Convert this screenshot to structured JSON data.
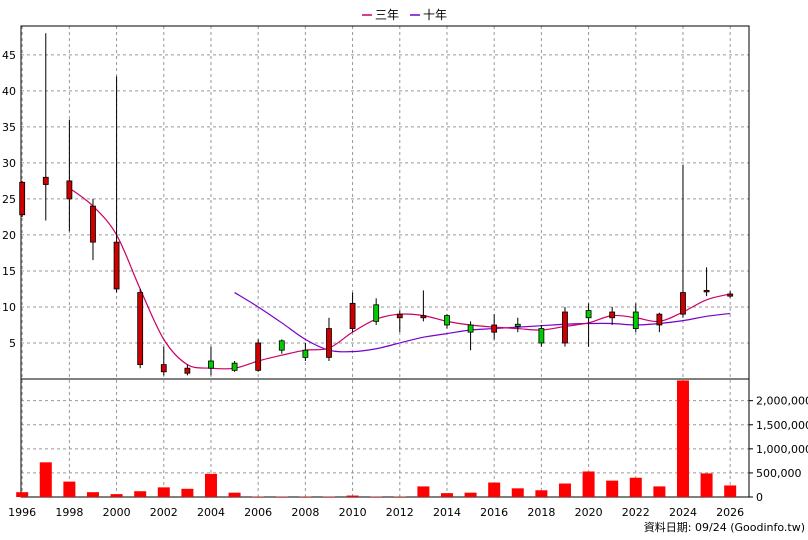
{
  "legend": {
    "ma3_label": "三年",
    "ma10_label": "十年"
  },
  "source_text": "資料日期: 09/24 (Goodinfo.tw)",
  "colors": {
    "up": "#00cc00",
    "down": "#cc0000",
    "ma3": "#cc0066",
    "ma10": "#7700cc",
    "volume": "#ff0000",
    "grid": "#999999"
  },
  "chart_data": {
    "type": "candlestick+volume",
    "x_ticks": [
      "1996",
      "1998",
      "2000",
      "2002",
      "2004",
      "2006",
      "2008",
      "2010",
      "2012",
      "2014",
      "2016",
      "2018",
      "2020",
      "2022",
      "2024",
      "2026"
    ],
    "price_axis": {
      "ticks": [
        5,
        10,
        15,
        20,
        25,
        30,
        35,
        40,
        45
      ],
      "range": [
        0,
        49
      ]
    },
    "volume_axis": {
      "ticks": [
        0,
        500000,
        1000000,
        1500000,
        2000000
      ],
      "tick_labels": [
        "0",
        "500,000",
        "1,000,000",
        "1,500,000",
        "2,000,000"
      ],
      "range": [
        0,
        2450000
      ]
    },
    "candles": [
      {
        "year": 1996,
        "open": 27.3,
        "high": 27.5,
        "low": 22.5,
        "close": 22.8
      },
      {
        "year": 1997,
        "open": 28.0,
        "high": 48.0,
        "low": 22.0,
        "close": 27.0
      },
      {
        "year": 1998,
        "open": 27.5,
        "high": 36.0,
        "low": 20.5,
        "close": 25.0
      },
      {
        "year": 1999,
        "open": 24.0,
        "high": 25.0,
        "low": 16.5,
        "close": 19.0
      },
      {
        "year": 2000,
        "open": 19.0,
        "high": 42.0,
        "low": 12.0,
        "close": 12.5
      },
      {
        "year": 2001,
        "open": 12.0,
        "high": 12.5,
        "low": 1.5,
        "close": 2.0
      },
      {
        "year": 2002,
        "open": 2.0,
        "high": 4.5,
        "low": 0.5,
        "close": 1.0
      },
      {
        "year": 2003,
        "open": 1.5,
        "high": 2.0,
        "low": 0.5,
        "close": 0.8
      },
      {
        "year": 2004,
        "open": 1.5,
        "high": 4.5,
        "low": 0.5,
        "close": 2.5
      },
      {
        "year": 2005,
        "open": 1.2,
        "high": 2.5,
        "low": 1.0,
        "close": 2.2
      },
      {
        "year": 2006,
        "open": 5.0,
        "high": 5.5,
        "low": 1.0,
        "close": 1.2
      },
      {
        "year": 2007,
        "open": 4.0,
        "high": 5.5,
        "low": 3.5,
        "close": 5.3
      },
      {
        "year": 2008,
        "open": 3.0,
        "high": 5.0,
        "low": 2.5,
        "close": 4.0
      },
      {
        "year": 2009,
        "open": 7.0,
        "high": 8.5,
        "low": 2.5,
        "close": 3.0
      },
      {
        "year": 2010,
        "open": 10.5,
        "high": 12.0,
        "low": 6.5,
        "close": 7.0
      },
      {
        "year": 2011,
        "open": 8.0,
        "high": 11.2,
        "low": 7.5,
        "close": 10.3
      },
      {
        "year": 2012,
        "open": 9.0,
        "high": 9.5,
        "low": 6.5,
        "close": 8.5
      },
      {
        "year": 2013,
        "open": 8.8,
        "high": 12.3,
        "low": 8.0,
        "close": 8.5
      },
      {
        "year": 2014,
        "open": 7.5,
        "high": 9.0,
        "low": 7.0,
        "close": 8.8
      },
      {
        "year": 2015,
        "open": 6.5,
        "high": 8.0,
        "low": 4.0,
        "close": 7.5
      },
      {
        "year": 2016,
        "open": 7.5,
        "high": 9.0,
        "low": 5.5,
        "close": 6.5
      },
      {
        "year": 2017,
        "open": 7.3,
        "high": 8.5,
        "low": 6.5,
        "close": 7.6
      },
      {
        "year": 2018,
        "open": 5.0,
        "high": 7.5,
        "low": 4.5,
        "close": 7.0
      },
      {
        "year": 2019,
        "open": 9.3,
        "high": 10.0,
        "low": 4.5,
        "close": 5.0
      },
      {
        "year": 2020,
        "open": 8.5,
        "high": 10.5,
        "low": 4.5,
        "close": 9.5
      },
      {
        "year": 2021,
        "open": 9.3,
        "high": 10.0,
        "low": 7.5,
        "close": 8.5
      },
      {
        "year": 2022,
        "open": 7.0,
        "high": 10.5,
        "low": 6.5,
        "close": 9.3
      },
      {
        "year": 2023,
        "open": 9.0,
        "high": 9.2,
        "low": 6.5,
        "close": 7.5
      },
      {
        "year": 2024,
        "open": 12.0,
        "high": 29.7,
        "low": 8.5,
        "close": 9.0
      },
      {
        "year": 2025,
        "open": 12.3,
        "high": 15.5,
        "low": 11.5,
        "close": 12.2
      },
      {
        "year": 2026,
        "open": 11.8,
        "high": 12.2,
        "low": 11.3,
        "close": 11.5
      }
    ],
    "ma3": [
      {
        "year": 1998,
        "value": 26.5
      },
      {
        "year": 1999,
        "value": 24.0
      },
      {
        "year": 2000,
        "value": 20.0
      },
      {
        "year": 2001,
        "value": 12.5
      },
      {
        "year": 2002,
        "value": 5.5
      },
      {
        "year": 2003,
        "value": 2.0
      },
      {
        "year": 2004,
        "value": 1.5
      },
      {
        "year": 2005,
        "value": 1.5
      },
      {
        "year": 2006,
        "value": 2.5
      },
      {
        "year": 2007,
        "value": 3.3
      },
      {
        "year": 2008,
        "value": 4.0
      },
      {
        "year": 2009,
        "value": 4.3
      },
      {
        "year": 2010,
        "value": 6.5
      },
      {
        "year": 2011,
        "value": 8.3
      },
      {
        "year": 2012,
        "value": 9.0
      },
      {
        "year": 2013,
        "value": 8.8
      },
      {
        "year": 2014,
        "value": 8.0
      },
      {
        "year": 2015,
        "value": 7.5
      },
      {
        "year": 2016,
        "value": 7.2
      },
      {
        "year": 2017,
        "value": 7.0
      },
      {
        "year": 2018,
        "value": 6.8
      },
      {
        "year": 2019,
        "value": 7.3
      },
      {
        "year": 2020,
        "value": 7.8
      },
      {
        "year": 2021,
        "value": 8.8
      },
      {
        "year": 2022,
        "value": 8.5
      },
      {
        "year": 2023,
        "value": 8.0
      },
      {
        "year": 2024,
        "value": 9.3
      },
      {
        "year": 2025,
        "value": 11.0
      },
      {
        "year": 2026,
        "value": 11.8
      }
    ],
    "ma10": [
      {
        "year": 2005,
        "value": 12.0
      },
      {
        "year": 2006,
        "value": 10.0
      },
      {
        "year": 2007,
        "value": 7.8
      },
      {
        "year": 2008,
        "value": 5.5
      },
      {
        "year": 2009,
        "value": 4.0
      },
      {
        "year": 2010,
        "value": 3.8
      },
      {
        "year": 2011,
        "value": 4.2
      },
      {
        "year": 2012,
        "value": 5.0
      },
      {
        "year": 2013,
        "value": 5.8
      },
      {
        "year": 2014,
        "value": 6.3
      },
      {
        "year": 2015,
        "value": 6.8
      },
      {
        "year": 2016,
        "value": 7.0
      },
      {
        "year": 2017,
        "value": 7.2
      },
      {
        "year": 2018,
        "value": 7.4
      },
      {
        "year": 2019,
        "value": 7.6
      },
      {
        "year": 2020,
        "value": 7.7
      },
      {
        "year": 2021,
        "value": 7.7
      },
      {
        "year": 2022,
        "value": 7.5
      },
      {
        "year": 2023,
        "value": 7.7
      },
      {
        "year": 2024,
        "value": 8.1
      },
      {
        "year": 2025,
        "value": 8.7
      },
      {
        "year": 2026,
        "value": 9.1
      }
    ],
    "volume": [
      {
        "year": 1996,
        "value": 100000
      },
      {
        "year": 1997,
        "value": 720000
      },
      {
        "year": 1998,
        "value": 320000
      },
      {
        "year": 1999,
        "value": 100000
      },
      {
        "year": 2000,
        "value": 60000
      },
      {
        "year": 2001,
        "value": 120000
      },
      {
        "year": 2002,
        "value": 200000
      },
      {
        "year": 2003,
        "value": 170000
      },
      {
        "year": 2004,
        "value": 480000
      },
      {
        "year": 2005,
        "value": 90000
      },
      {
        "year": 2006,
        "value": 10000
      },
      {
        "year": 2007,
        "value": 10000
      },
      {
        "year": 2008,
        "value": 10000
      },
      {
        "year": 2009,
        "value": 10000
      },
      {
        "year": 2010,
        "value": 30000
      },
      {
        "year": 2011,
        "value": 10000
      },
      {
        "year": 2012,
        "value": 10000
      },
      {
        "year": 2013,
        "value": 220000
      },
      {
        "year": 2014,
        "value": 80000
      },
      {
        "year": 2015,
        "value": 90000
      },
      {
        "year": 2016,
        "value": 300000
      },
      {
        "year": 2017,
        "value": 180000
      },
      {
        "year": 2018,
        "value": 140000
      },
      {
        "year": 2019,
        "value": 280000
      },
      {
        "year": 2020,
        "value": 530000
      },
      {
        "year": 2021,
        "value": 340000
      },
      {
        "year": 2022,
        "value": 400000
      },
      {
        "year": 2023,
        "value": 220000
      },
      {
        "year": 2024,
        "value": 2420000
      },
      {
        "year": 2025,
        "value": 490000
      },
      {
        "year": 2026,
        "value": 240000
      }
    ]
  }
}
